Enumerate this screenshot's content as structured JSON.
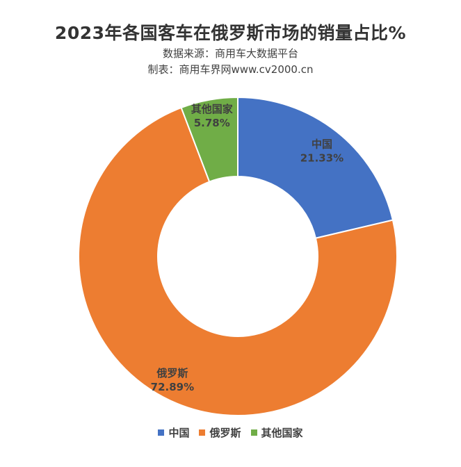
{
  "chart_data": {
    "type": "pie",
    "title": "2023年各国客车在俄罗斯市场的销量占比%",
    "subtitle_lines": [
      "数据来源：商用车大数据平台",
      "制表：商用车界网www.cv2000.cn"
    ],
    "donut": true,
    "categories": [
      "中国",
      "俄罗斯",
      "其他国家"
    ],
    "values": [
      21.33,
      72.89,
      5.78
    ],
    "value_labels": [
      "21.33%",
      "72.89%",
      "5.78%"
    ],
    "colors": [
      "#4472C4",
      "#ED7D31",
      "#70AD47"
    ],
    "legend_position": "bottom"
  }
}
